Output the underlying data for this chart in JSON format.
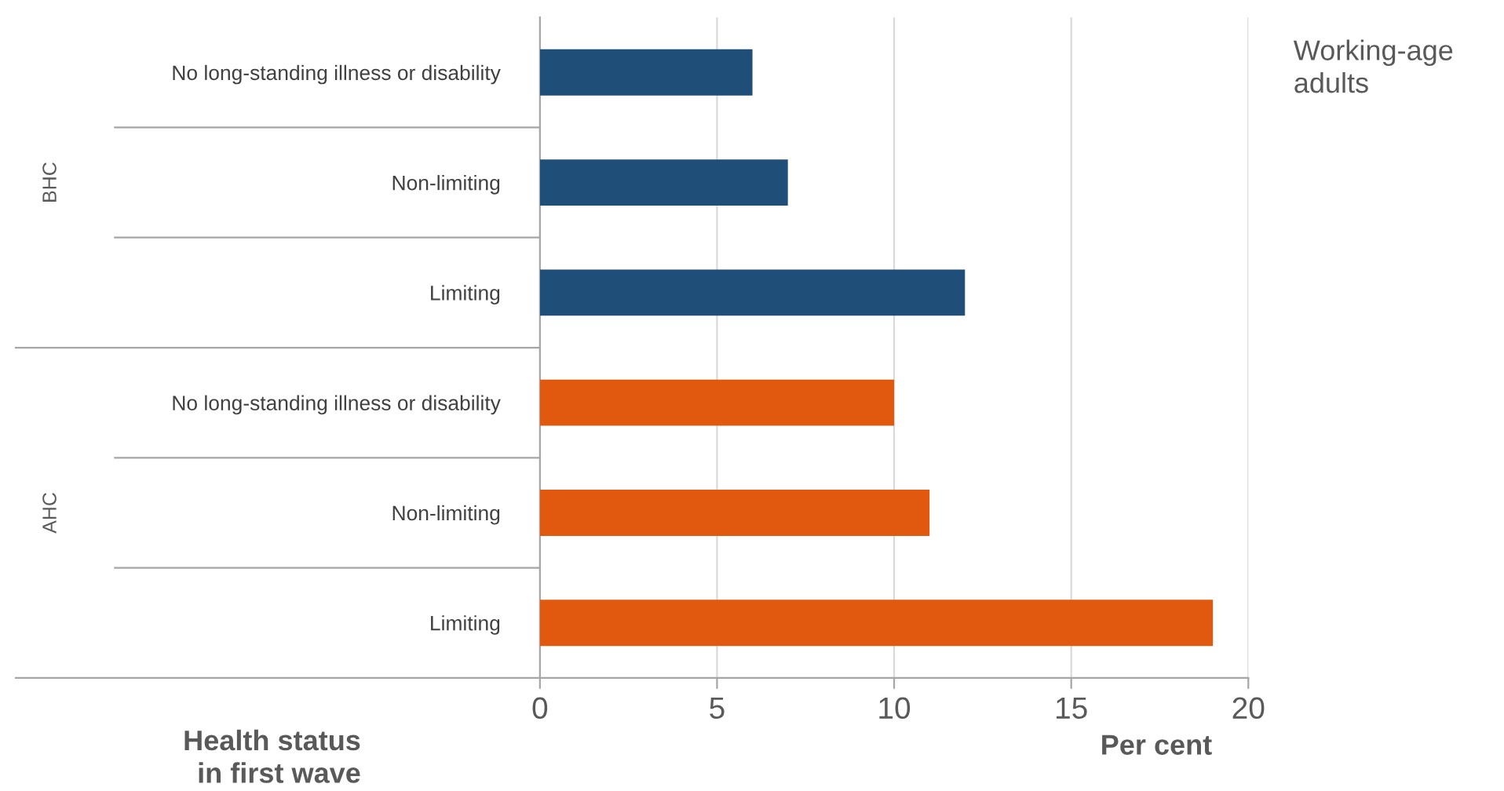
{
  "chart_data": {
    "type": "bar",
    "orientation": "horizontal",
    "categories": [
      "No long-standing illness or disability",
      "Non-limiting",
      "Limiting",
      "No long-standing illness or disability",
      "Non-limiting",
      "Limiting"
    ],
    "values": [
      6,
      7,
      12,
      10,
      11,
      19
    ],
    "colors": [
      "#1f4e79",
      "#1f4e79",
      "#1f4e79",
      "#e0590f",
      "#e0590f",
      "#e0590f"
    ],
    "xlim": [
      0,
      20
    ],
    "xticks": [
      0,
      5,
      10,
      15,
      20
    ],
    "grid": "x",
    "xlabel": "Per cent",
    "ylabel": "Health status\nin first wave",
    "annotations": [
      "BHC",
      "AHC",
      "Working-age\nadults"
    ]
  }
}
